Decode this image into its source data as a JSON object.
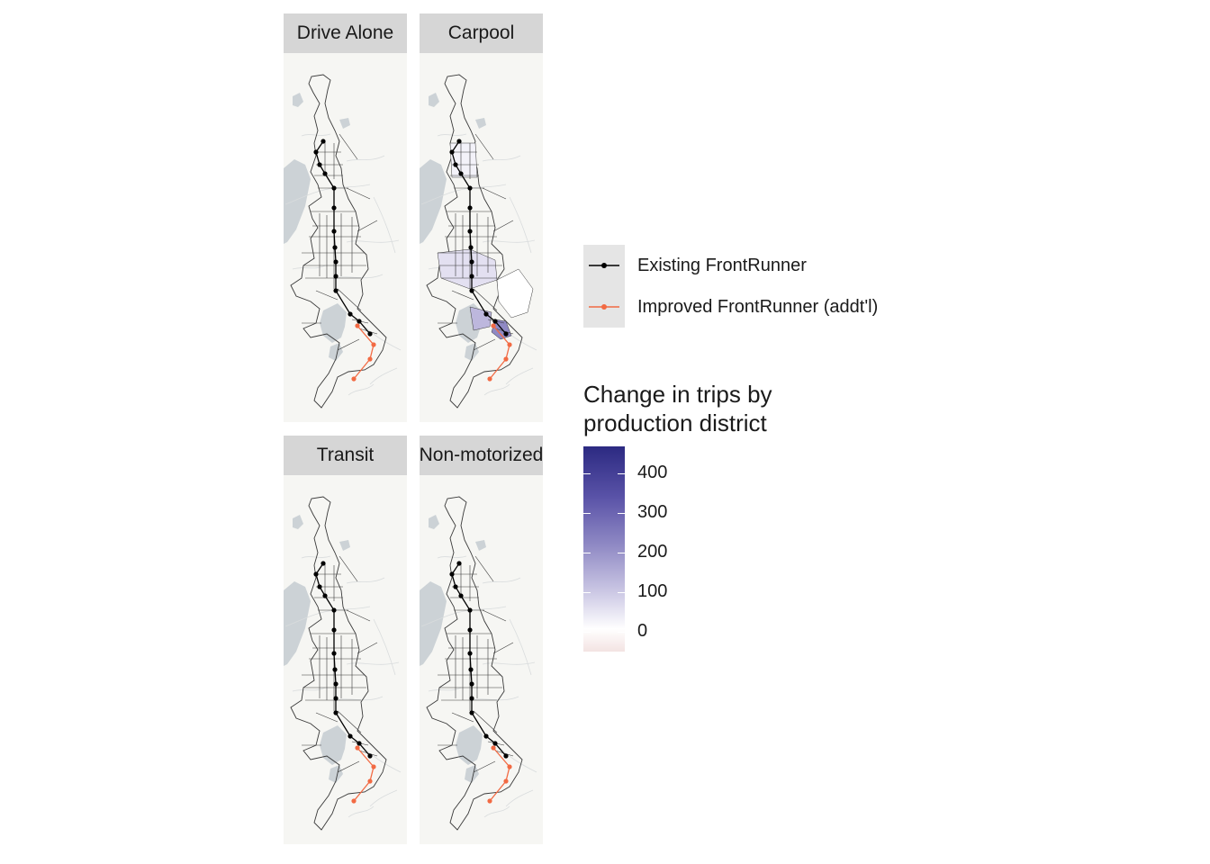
{
  "facets": [
    {
      "label": "Drive Alone",
      "shading": "none"
    },
    {
      "label": "Carpool",
      "shading": "carpool"
    },
    {
      "label": "Transit",
      "shading": "none"
    },
    {
      "label": "Non-motorized",
      "shading": "none"
    }
  ],
  "legend": {
    "lines": [
      {
        "label": "Existing FrontRunner",
        "color": "#000000"
      },
      {
        "label": "Improved FrontRunner (addt'l)",
        "color": "#f26a43"
      }
    ],
    "colorbar": {
      "title_line1": "Change in trips by",
      "title_line2": "production district",
      "tick_labels": [
        "400",
        "300",
        "200",
        "100",
        "0"
      ],
      "low_color": "#f3e3e2",
      "mid_color": "#ffffff",
      "high_color": "#2c2a82"
    }
  },
  "colors": {
    "map_background": "#f6f6f3",
    "water": "#ccd2d6",
    "strip": "#d6d6d6",
    "boundary": "#3a3a3a"
  }
}
